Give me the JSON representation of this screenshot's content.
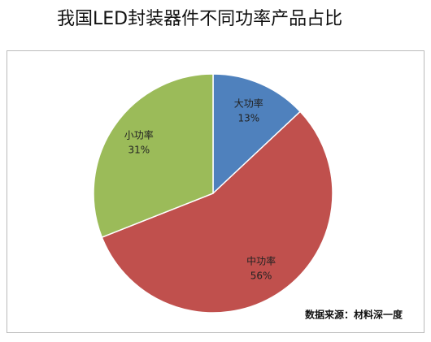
{
  "chart_data": {
    "type": "pie",
    "title": "我国LED封装器件不同功率产品占比",
    "categories": [
      "大功率",
      "中功率",
      "小功率"
    ],
    "values": [
      13,
      56,
      31
    ],
    "value_labels": [
      "13%",
      "56%",
      "31%"
    ],
    "colors": [
      "#4f81bd",
      "#c0504d",
      "#9bbb59"
    ],
    "source": "数据来源：材料深一度"
  }
}
